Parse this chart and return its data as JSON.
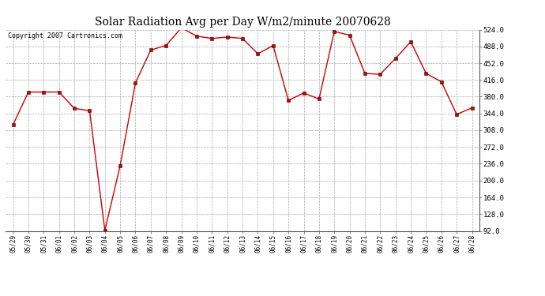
{
  "title": "Solar Radiation Avg per Day W/m2/minute 20070628",
  "copyright": "Copyright 2007 Cartronics.com",
  "dates": [
    "05/29",
    "05/30",
    "05/31",
    "06/01",
    "06/02",
    "06/03",
    "06/04",
    "06/05",
    "06/06",
    "06/07",
    "06/08",
    "06/09",
    "06/10",
    "06/11",
    "06/12",
    "06/13",
    "06/14",
    "06/15",
    "06/16",
    "06/17",
    "06/18",
    "06/19",
    "06/20",
    "06/21",
    "06/22",
    "06/23",
    "06/24",
    "06/25",
    "06/26",
    "06/27",
    "06/28"
  ],
  "values": [
    320,
    390,
    390,
    390,
    355,
    350,
    93,
    232,
    410,
    480,
    490,
    528,
    510,
    505,
    508,
    505,
    472,
    490,
    372,
    388,
    375,
    520,
    512,
    430,
    428,
    462,
    498,
    430,
    412,
    342,
    356
  ],
  "line_color": "#cc0000",
  "marker": "s",
  "marker_size": 2.5,
  "bg_color": "#ffffff",
  "plot_bg_color": "#ffffff",
  "grid_color": "#aaaaaa",
  "ymin": 92.0,
  "ymax": 524.0,
  "yticks": [
    92.0,
    128.0,
    164.0,
    200.0,
    236.0,
    272.0,
    308.0,
    344.0,
    380.0,
    416.0,
    452.0,
    488.0,
    524.0
  ],
  "title_fontsize": 10,
  "copyright_fontsize": 6.0
}
